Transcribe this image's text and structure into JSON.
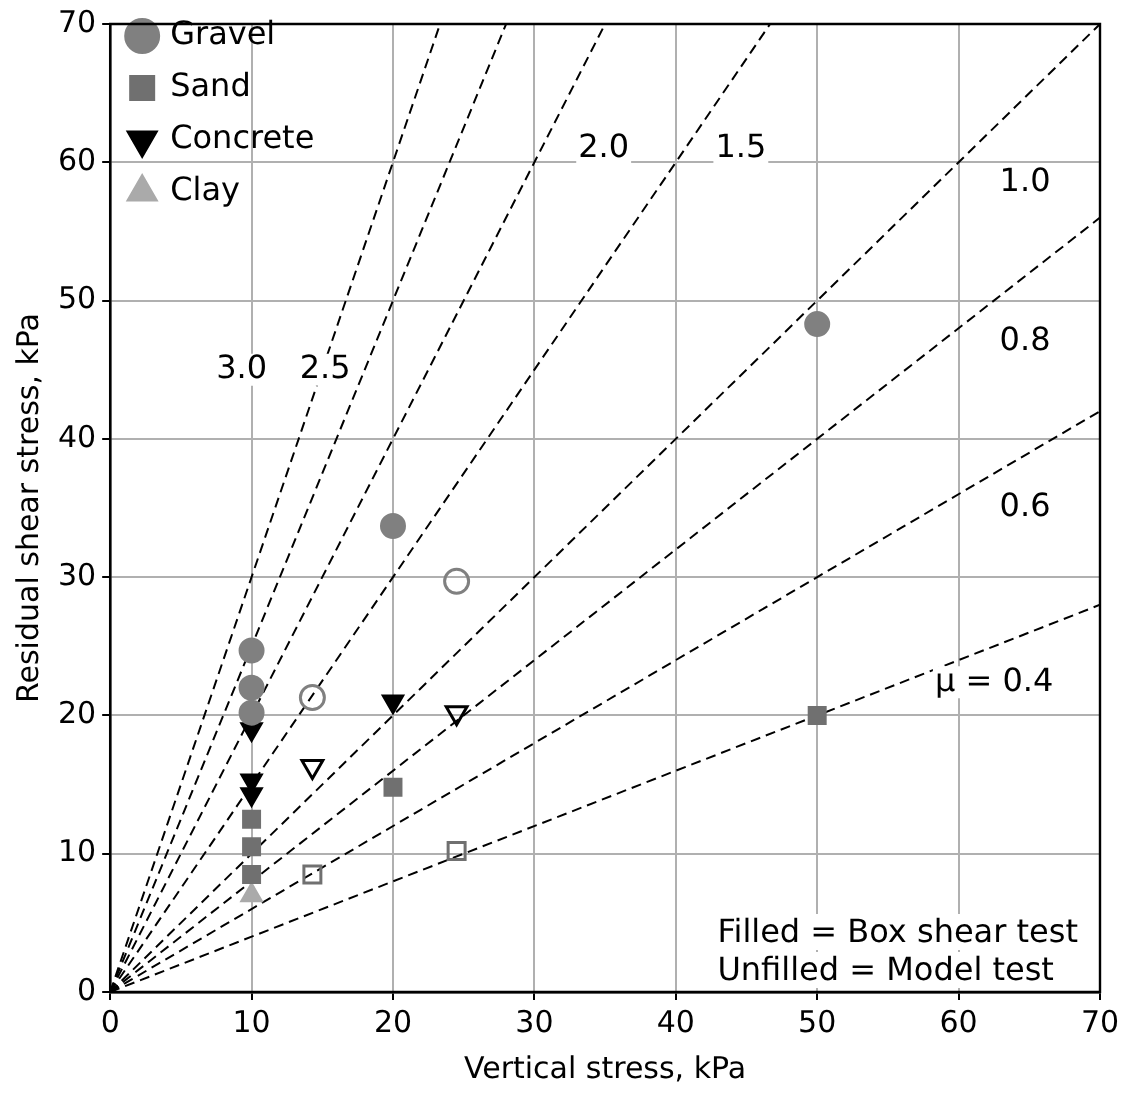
{
  "chart_data": {
    "type": "scatter",
    "xlabel": "Vertical stress, kPa",
    "ylabel": "Residual shear stress, kPa",
    "xlim": [
      0,
      70
    ],
    "ylim": [
      0,
      70
    ],
    "xticks": [
      0,
      10,
      20,
      30,
      40,
      50,
      60,
      70
    ],
    "yticks": [
      0,
      10,
      20,
      30,
      40,
      50,
      60,
      70
    ],
    "grid": true,
    "legend": "top left",
    "series": [
      {
        "name": "Gravel",
        "color": "#808080",
        "marker": "circle",
        "x": [
          10,
          10,
          10,
          20,
          50
        ],
        "values": [
          24.7,
          22,
          20.2,
          33.7,
          48.3
        ]
      },
      {
        "name": "Sand",
        "color": "#707070",
        "marker": "square",
        "x": [
          10,
          10,
          10,
          20,
          50
        ],
        "values": [
          12.5,
          10.5,
          8.5,
          14.8,
          20
        ]
      },
      {
        "name": "Concrete",
        "color": "#000000",
        "marker": "triangle_down",
        "x": [
          10,
          10,
          10,
          20
        ],
        "values": [
          19,
          15.3,
          14.3,
          21
        ]
      },
      {
        "name": "Clay",
        "color": "#aaaaaa",
        "marker": "triangle",
        "x": [
          10
        ],
        "values": [
          7
        ]
      },
      {
        "color": "#808080",
        "marker": "circle",
        "x": [
          14.3,
          24.5
        ],
        "values": [
          21.3,
          29.7
        ]
      },
      {
        "color": "#707070",
        "marker": "square",
        "x": [
          14.3,
          24.5
        ],
        "values": [
          8.5,
          10.2
        ]
      },
      {
        "color": "#000000",
        "marker": "triangle_down",
        "x": [
          14.3,
          24.5
        ],
        "values": [
          16.3,
          20.2
        ]
      },
      {
        "type": "line",
        "color": "#000000",
        "line_style": "dashed",
        "marker": "none",
        "x": [
          0,
          23.33
        ],
        "values": [
          0,
          70
        ]
      },
      {
        "type": "line",
        "color": "#000000",
        "line_style": "dashed",
        "marker": "none",
        "x": [
          0,
          28
        ],
        "values": [
          0,
          70
        ]
      },
      {
        "type": "line",
        "color": "#000000",
        "line_style": "dashed",
        "marker": "none",
        "x": [
          0,
          35
        ],
        "values": [
          0,
          70
        ]
      },
      {
        "type": "line",
        "color": "#000000",
        "line_style": "dashed",
        "marker": "none",
        "x": [
          0,
          46.67
        ],
        "values": [
          0,
          70
        ]
      },
      {
        "type": "line",
        "color": "#000000",
        "line_style": "dashed",
        "marker": "none",
        "x": [
          0,
          70
        ],
        "values": [
          0,
          70
        ]
      },
      {
        "type": "line",
        "color": "#000000",
        "line_style": "dashed",
        "marker": "none",
        "x": [
          0,
          70
        ],
        "values": [
          0,
          56
        ]
      },
      {
        "type": "line",
        "color": "#000000",
        "line_style": "dashed",
        "marker": "none",
        "x": [
          0,
          70
        ],
        "values": [
          0,
          42
        ]
      },
      {
        "type": "line",
        "name": "μ = 0.4",
        "color": "#000000",
        "line_style": "dashed",
        "marker": "none",
        "x": [
          0,
          70
        ],
        "values": [
          0,
          28
        ]
      }
    ],
    "annotations": [
      {
        "text": "3.0",
        "x": 9.3,
        "y": 45
      },
      {
        "text": "2.5",
        "x": 15.2,
        "y": 45
      },
      {
        "text": "2.0",
        "x": 34.9,
        "y": 61
      },
      {
        "text": "1.5",
        "x": 44.6,
        "y": 61
      },
      {
        "text": "1.0",
        "x": 64.7,
        "y": 58.5
      },
      {
        "text": "0.8",
        "x": 64.7,
        "y": 47
      },
      {
        "text": "0.6",
        "x": 64.7,
        "y": 35
      },
      "Filled = Box shear test",
      "Unfilled = Model test"
    ]
  }
}
